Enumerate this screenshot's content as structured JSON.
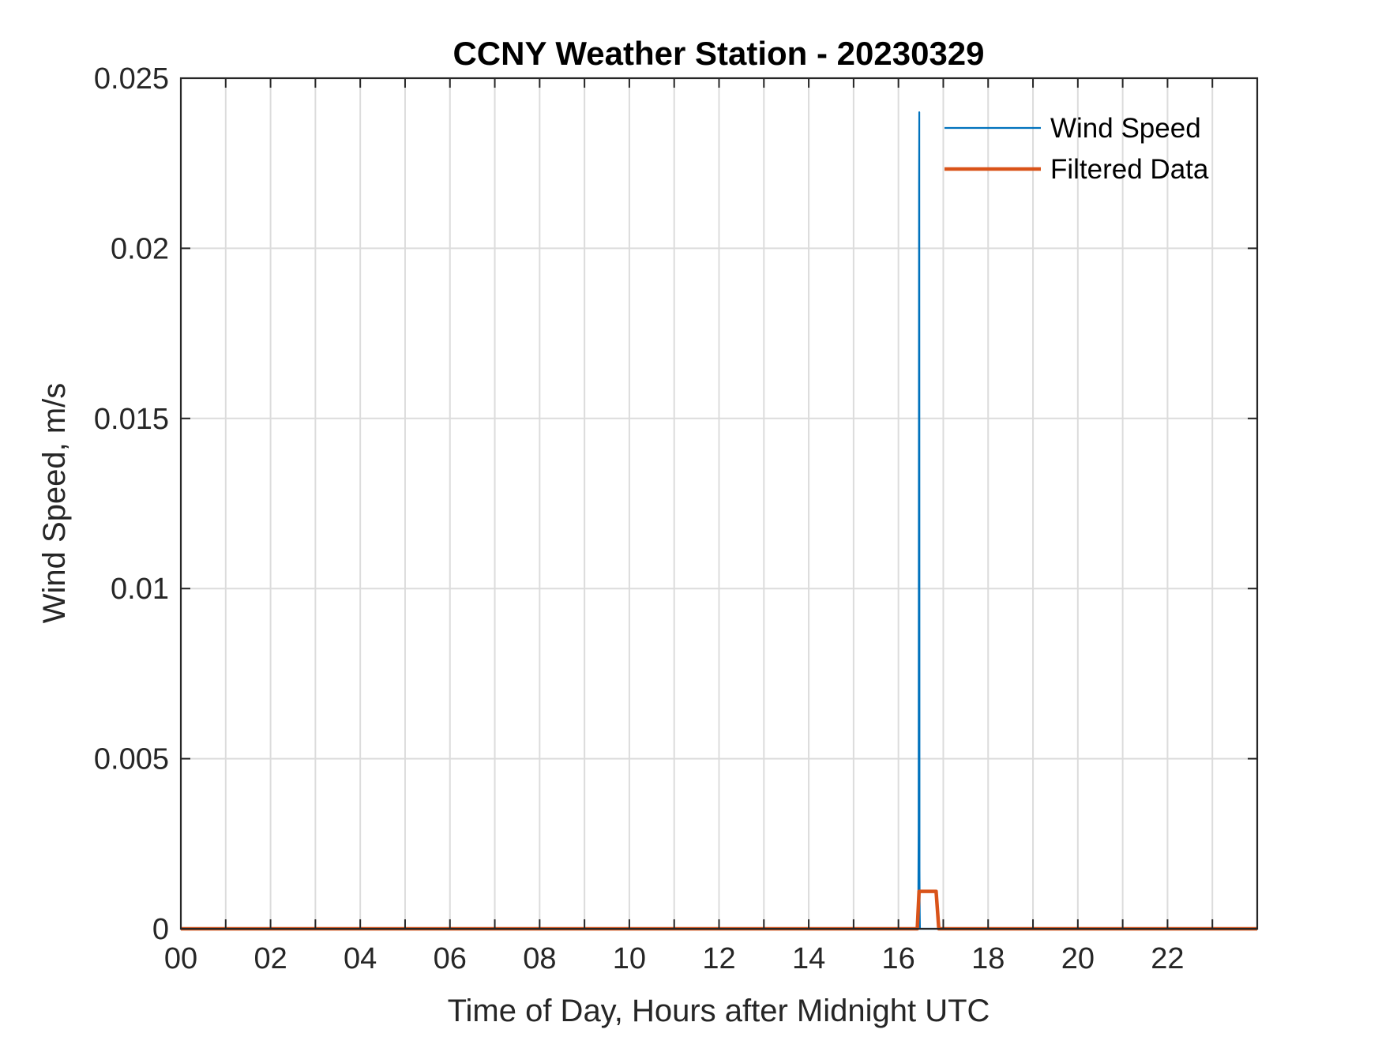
{
  "chart_data": {
    "type": "line",
    "title": "CCNY Weather Station - 20230329",
    "xlabel": "Time of Day, Hours after Midnight UTC",
    "ylabel": "Wind Speed, m/s",
    "xlim": [
      0,
      24
    ],
    "ylim": [
      0,
      0.025
    ],
    "x_ticks": [
      0,
      2,
      4,
      6,
      8,
      10,
      12,
      14,
      16,
      18,
      20,
      22
    ],
    "x_tick_labels": [
      "00",
      "02",
      "04",
      "06",
      "08",
      "10",
      "12",
      "14",
      "16",
      "18",
      "20",
      "22"
    ],
    "x_minor_grid_step": 1,
    "y_ticks": [
      0,
      0.005,
      0.01,
      0.015,
      0.02,
      0.025
    ],
    "y_tick_labels": [
      "0",
      "0.005",
      "0.01",
      "0.015",
      "0.02",
      "0.025"
    ],
    "grid": true,
    "legend_position": "top-right",
    "series": [
      {
        "name": "Wind Speed",
        "color": "#0072BD",
        "x": [
          0,
          16.44,
          16.45,
          16.46,
          16.465,
          16.47,
          16.475,
          16.48,
          16.49,
          16.5,
          24
        ],
        "y": [
          0,
          0,
          0.0029,
          0.0219,
          0.024,
          0.0017,
          0.0005,
          0,
          0,
          0,
          0
        ]
      },
      {
        "name": "Filtered Data",
        "color": "#D95319",
        "x": [
          0,
          16.42,
          16.46,
          16.84,
          16.9,
          24
        ],
        "y": [
          0,
          0,
          0.0011,
          0.0011,
          0,
          0
        ]
      }
    ]
  }
}
